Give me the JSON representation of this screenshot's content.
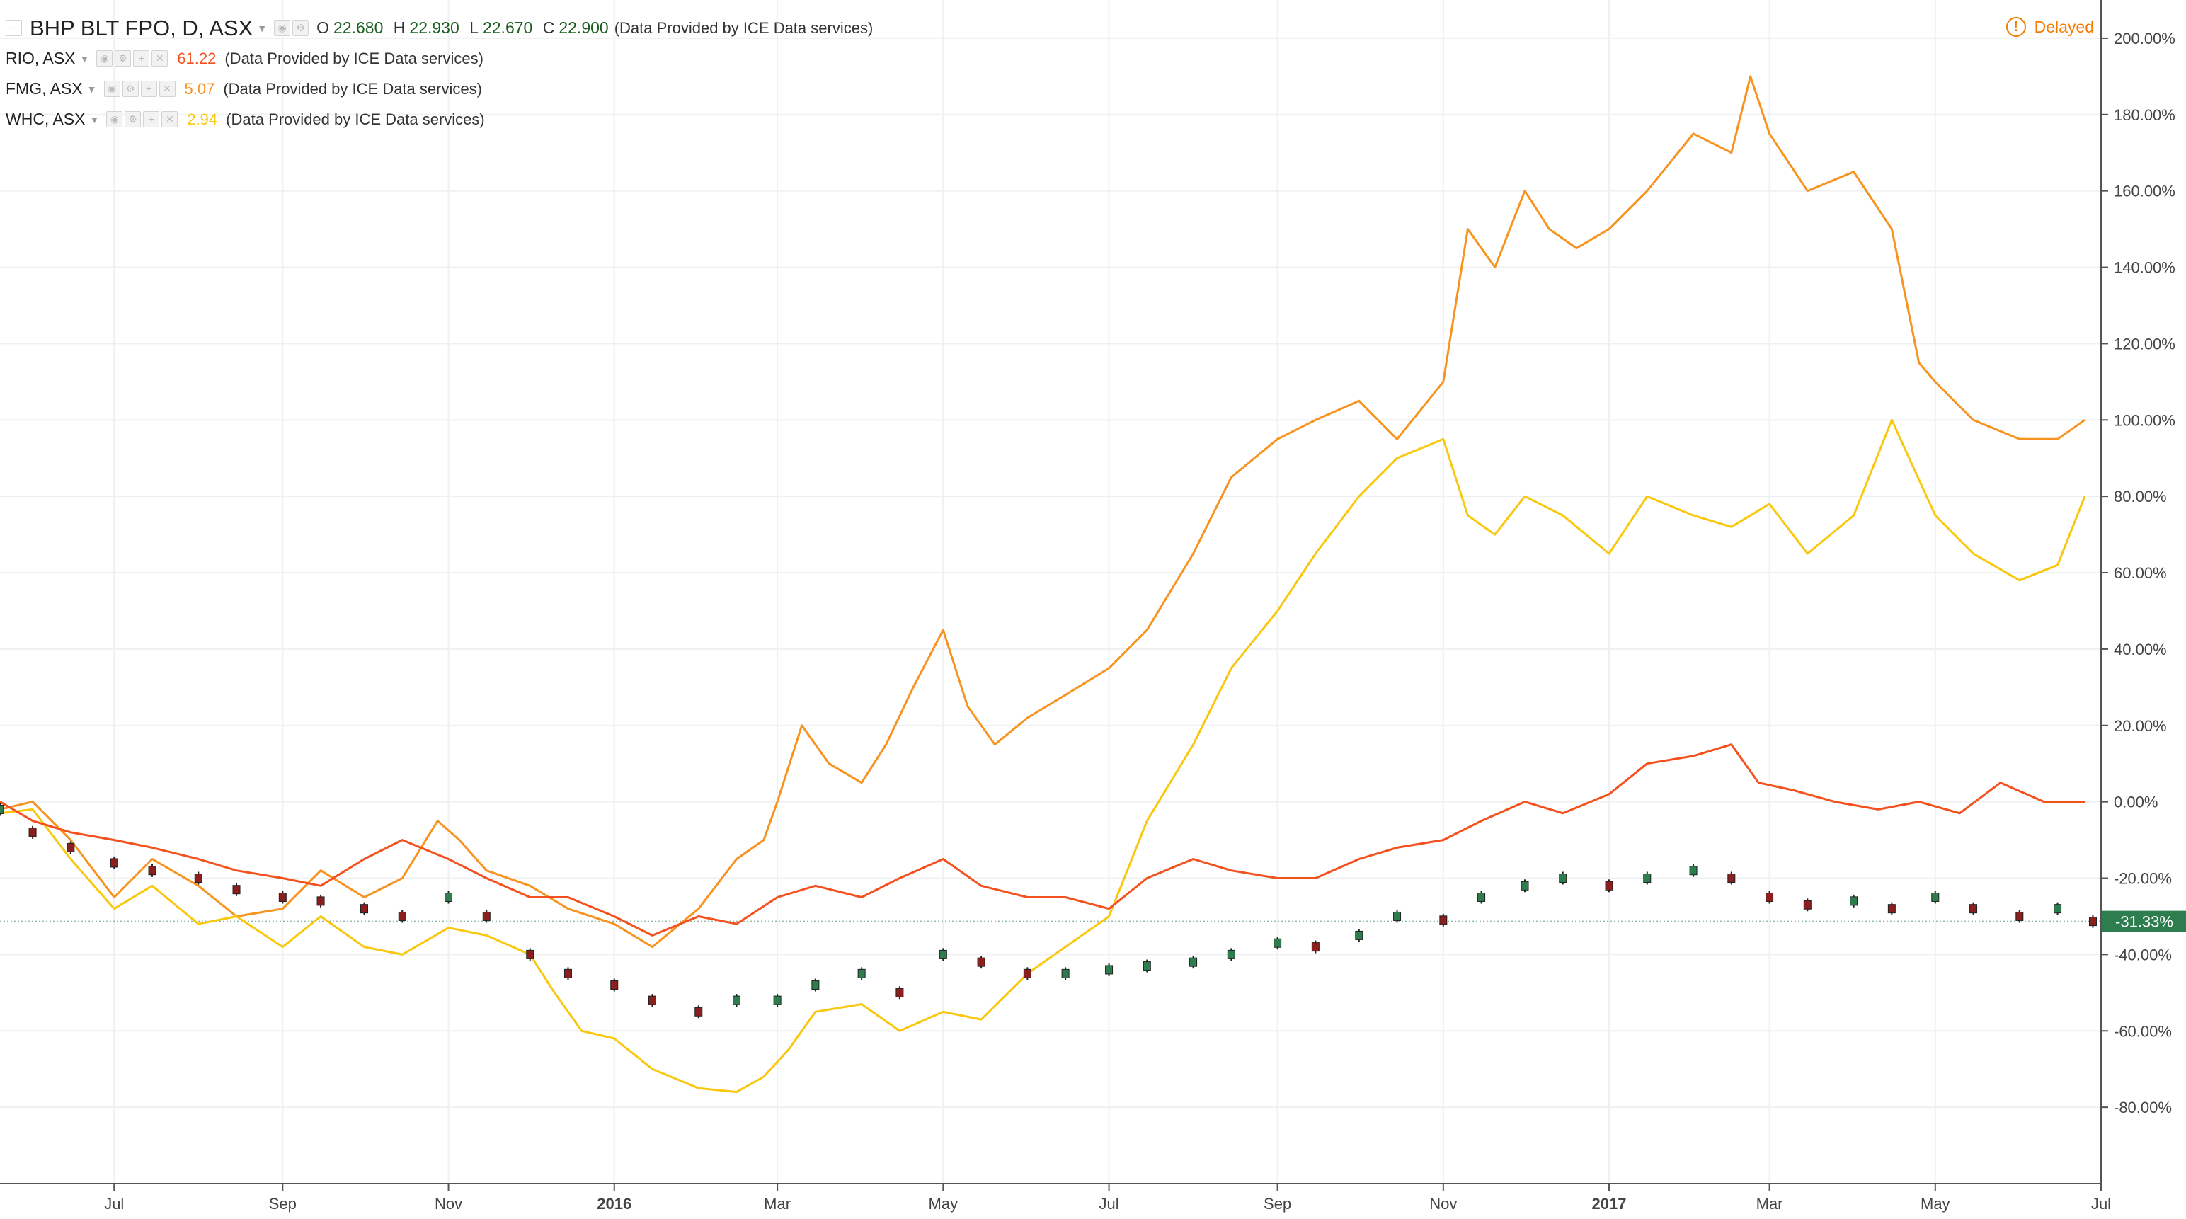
{
  "legend": {
    "main": {
      "symbol": "BHP BLT FPO, D, ASX",
      "o_label": "O",
      "o": "22.680",
      "h_label": "H",
      "h": "22.930",
      "l_label": "L",
      "l": "22.670",
      "c_label": "C",
      "c": "22.900",
      "source": "(Data Provided by ICE Data services)"
    },
    "compare": [
      {
        "symbol": "RIO, ASX",
        "value": "61.22",
        "color": "#f4511e",
        "source": "(Data Provided by ICE Data services)"
      },
      {
        "symbol": "FMG, ASX",
        "value": "5.07",
        "color": "#f7931e",
        "source": "(Data Provided by ICE Data services)"
      },
      {
        "symbol": "WHC, ASX",
        "value": "2.94",
        "color": "#f9c80e",
        "source": "(Data Provided by ICE Data services)"
      }
    ]
  },
  "status": {
    "delayed_label": "Delayed",
    "icon": "info-icon"
  },
  "chart_data": {
    "type": "line",
    "grid": true,
    "y_axis": {
      "position": "right",
      "range": [
        -100,
        210
      ],
      "ticks": [
        200,
        180,
        160,
        140,
        120,
        100,
        80,
        60,
        40,
        20,
        0,
        -20,
        -40,
        -60,
        -80
      ],
      "tick_labels": [
        "200.00%",
        "180.00%",
        "160.00%",
        "140.00%",
        "120.00%",
        "100.00%",
        "80.00%",
        "60.00%",
        "40.00%",
        "20.00%",
        "0.00%",
        "-20.00%",
        "-40.00%",
        "-60.00%",
        "-80.00%"
      ]
    },
    "x_axis": {
      "range": [
        "2015-05-20",
        "2017-07-01"
      ],
      "ticks": [
        {
          "date": "2015-07-01",
          "label": "Jul",
          "bold": false
        },
        {
          "date": "2015-09-01",
          "label": "Sep",
          "bold": false
        },
        {
          "date": "2015-11-01",
          "label": "Nov",
          "bold": false
        },
        {
          "date": "2016-01-01",
          "label": "2016",
          "bold": true
        },
        {
          "date": "2016-03-01",
          "label": "Mar",
          "bold": false
        },
        {
          "date": "2016-05-01",
          "label": "May",
          "bold": false
        },
        {
          "date": "2016-07-01",
          "label": "Jul",
          "bold": false
        },
        {
          "date": "2016-09-01",
          "label": "Sep",
          "bold": false
        },
        {
          "date": "2016-11-01",
          "label": "Nov",
          "bold": false
        },
        {
          "date": "2017-01-01",
          "label": "2017",
          "bold": true
        },
        {
          "date": "2017-03-01",
          "label": "Mar",
          "bold": false
        },
        {
          "date": "2017-05-01",
          "label": "May",
          "bold": false
        },
        {
          "date": "2017-07-01",
          "label": "Jul",
          "bold": false
        }
      ]
    },
    "last_value": {
      "value": -31.33,
      "label": "-31.33%",
      "color": "#2e7d4f"
    },
    "series": [
      {
        "name": "FMG, ASX",
        "color": "#f7931e",
        "style": "line",
        "x": [
          "2015-05-20",
          "2015-06-01",
          "2015-06-15",
          "2015-07-01",
          "2015-07-15",
          "2015-08-01",
          "2015-08-15",
          "2015-09-01",
          "2015-09-15",
          "2015-10-01",
          "2015-10-15",
          "2015-10-28",
          "2015-11-05",
          "2015-11-15",
          "2015-12-01",
          "2015-12-15",
          "2016-01-01",
          "2016-01-15",
          "2016-02-01",
          "2016-02-15",
          "2016-02-25",
          "2016-03-01",
          "2016-03-10",
          "2016-03-20",
          "2016-04-01",
          "2016-04-10",
          "2016-04-20",
          "2016-05-01",
          "2016-05-10",
          "2016-05-20",
          "2016-06-01",
          "2016-06-15",
          "2016-07-01",
          "2016-07-15",
          "2016-08-01",
          "2016-08-15",
          "2016-09-01",
          "2016-09-15",
          "2016-10-01",
          "2016-10-15",
          "2016-11-01",
          "2016-11-10",
          "2016-11-20",
          "2016-12-01",
          "2016-12-10",
          "2016-12-20",
          "2017-01-01",
          "2017-01-15",
          "2017-02-01",
          "2017-02-15",
          "2017-02-22",
          "2017-03-01",
          "2017-03-15",
          "2017-04-01",
          "2017-04-15",
          "2017-04-25",
          "2017-05-01",
          "2017-05-15",
          "2017-06-01",
          "2017-06-15",
          "2017-06-25"
        ],
        "y": [
          -2,
          0,
          -10,
          -25,
          -15,
          -22,
          -30,
          -28,
          -18,
          -25,
          -20,
          -5,
          -10,
          -18,
          -22,
          -28,
          -32,
          -38,
          -28,
          -15,
          -10,
          0,
          20,
          10,
          5,
          15,
          30,
          45,
          25,
          15,
          22,
          28,
          35,
          45,
          65,
          85,
          95,
          100,
          105,
          95,
          110,
          150,
          140,
          160,
          150,
          145,
          150,
          160,
          175,
          170,
          190,
          175,
          160,
          165,
          150,
          115,
          110,
          100,
          95,
          95,
          100
        ]
      },
      {
        "name": "WHC, ASX",
        "color": "#f9c80e",
        "style": "line",
        "x": [
          "2015-05-20",
          "2015-06-01",
          "2015-06-15",
          "2015-07-01",
          "2015-07-15",
          "2015-08-01",
          "2015-08-15",
          "2015-09-01",
          "2015-09-15",
          "2015-10-01",
          "2015-10-15",
          "2015-11-01",
          "2015-11-15",
          "2015-12-01",
          "2015-12-10",
          "2015-12-20",
          "2016-01-01",
          "2016-01-15",
          "2016-02-01",
          "2016-02-15",
          "2016-02-25",
          "2016-03-05",
          "2016-03-15",
          "2016-04-01",
          "2016-04-15",
          "2016-05-01",
          "2016-05-15",
          "2016-06-01",
          "2016-06-15",
          "2016-07-01",
          "2016-07-15",
          "2016-08-01",
          "2016-08-15",
          "2016-09-01",
          "2016-09-15",
          "2016-10-01",
          "2016-10-15",
          "2016-11-01",
          "2016-11-10",
          "2016-11-20",
          "2016-12-01",
          "2016-12-15",
          "2017-01-01",
          "2017-01-15",
          "2017-02-01",
          "2017-02-15",
          "2017-03-01",
          "2017-03-15",
          "2017-04-01",
          "2017-04-15",
          "2017-05-01",
          "2017-05-15",
          "2017-06-01",
          "2017-06-15",
          "2017-06-25"
        ],
        "y": [
          -3,
          -2,
          -15,
          -28,
          -22,
          -32,
          -30,
          -38,
          -30,
          -38,
          -40,
          -33,
          -35,
          -40,
          -50,
          -60,
          -62,
          -70,
          -75,
          -76,
          -72,
          -65,
          -55,
          -53,
          -60,
          -55,
          -57,
          -45,
          -38,
          -30,
          -5,
          15,
          35,
          50,
          65,
          80,
          90,
          95,
          75,
          70,
          80,
          75,
          65,
          80,
          75,
          72,
          78,
          65,
          75,
          100,
          75,
          65,
          58,
          62,
          80
        ]
      },
      {
        "name": "RIO, ASX",
        "color": "#f4511e",
        "style": "line",
        "x": [
          "2015-05-20",
          "2015-06-01",
          "2015-06-15",
          "2015-07-01",
          "2015-07-15",
          "2015-08-01",
          "2015-08-15",
          "2015-09-01",
          "2015-09-15",
          "2015-10-01",
          "2015-10-15",
          "2015-11-01",
          "2015-11-15",
          "2015-12-01",
          "2015-12-15",
          "2016-01-01",
          "2016-01-15",
          "2016-02-01",
          "2016-02-15",
          "2016-03-01",
          "2016-03-15",
          "2016-04-01",
          "2016-04-15",
          "2016-05-01",
          "2016-05-15",
          "2016-06-01",
          "2016-06-15",
          "2016-07-01",
          "2016-07-15",
          "2016-08-01",
          "2016-08-15",
          "2016-09-01",
          "2016-09-15",
          "2016-10-01",
          "2016-10-15",
          "2016-11-01",
          "2016-11-15",
          "2016-12-01",
          "2016-12-15",
          "2017-01-01",
          "2017-01-15",
          "2017-02-01",
          "2017-02-15",
          "2017-02-25",
          "2017-03-10",
          "2017-03-25",
          "2017-04-10",
          "2017-04-25",
          "2017-05-10",
          "2017-05-25",
          "2017-06-10",
          "2017-06-25"
        ],
        "y": [
          0,
          -5,
          -8,
          -10,
          -12,
          -15,
          -18,
          -20,
          -22,
          -15,
          -10,
          -15,
          -20,
          -25,
          -25,
          -30,
          -35,
          -30,
          -32,
          -25,
          -22,
          -25,
          -20,
          -15,
          -22,
          -25,
          -25,
          -28,
          -20,
          -15,
          -18,
          -20,
          -20,
          -15,
          -12,
          -10,
          -5,
          0,
          -3,
          2,
          10,
          12,
          15,
          5,
          3,
          0,
          -2,
          0,
          -3,
          5,
          0,
          0
        ]
      },
      {
        "name": "BHP BLT FPO, D, ASX",
        "color": "#222222",
        "style": "candle",
        "x": [
          "2015-05-20",
          "2015-06-01",
          "2015-06-15",
          "2015-07-01",
          "2015-07-15",
          "2015-08-01",
          "2015-08-15",
          "2015-09-01",
          "2015-09-15",
          "2015-10-01",
          "2015-10-15",
          "2015-11-01",
          "2015-11-15",
          "2015-12-01",
          "2015-12-15",
          "2016-01-01",
          "2016-01-15",
          "2016-02-01",
          "2016-02-15",
          "2016-03-01",
          "2016-03-15",
          "2016-04-01",
          "2016-04-15",
          "2016-05-01",
          "2016-05-15",
          "2016-06-01",
          "2016-06-15",
          "2016-07-01",
          "2016-07-15",
          "2016-08-01",
          "2016-08-15",
          "2016-09-01",
          "2016-09-15",
          "2016-10-01",
          "2016-10-15",
          "2016-11-01",
          "2016-11-15",
          "2016-12-01",
          "2016-12-15",
          "2017-01-01",
          "2017-01-15",
          "2017-02-01",
          "2017-02-15",
          "2017-03-01",
          "2017-03-15",
          "2017-04-01",
          "2017-04-15",
          "2017-05-01",
          "2017-05-15",
          "2017-06-01",
          "2017-06-15",
          "2017-06-28"
        ],
        "y": [
          -2,
          -8,
          -12,
          -16,
          -18,
          -20,
          -23,
          -25,
          -26,
          -28,
          -30,
          -25,
          -30,
          -40,
          -45,
          -48,
          -52,
          -55,
          -52,
          -52,
          -48,
          -45,
          -50,
          -40,
          -42,
          -45,
          -45,
          -44,
          -43,
          -42,
          -40,
          -37,
          -38,
          -35,
          -30,
          -31,
          -25,
          -22,
          -20,
          -22,
          -20,
          -18,
          -20,
          -25,
          -27,
          -26,
          -28,
          -25,
          -28,
          -30,
          -28,
          -31.33
        ]
      }
    ]
  }
}
